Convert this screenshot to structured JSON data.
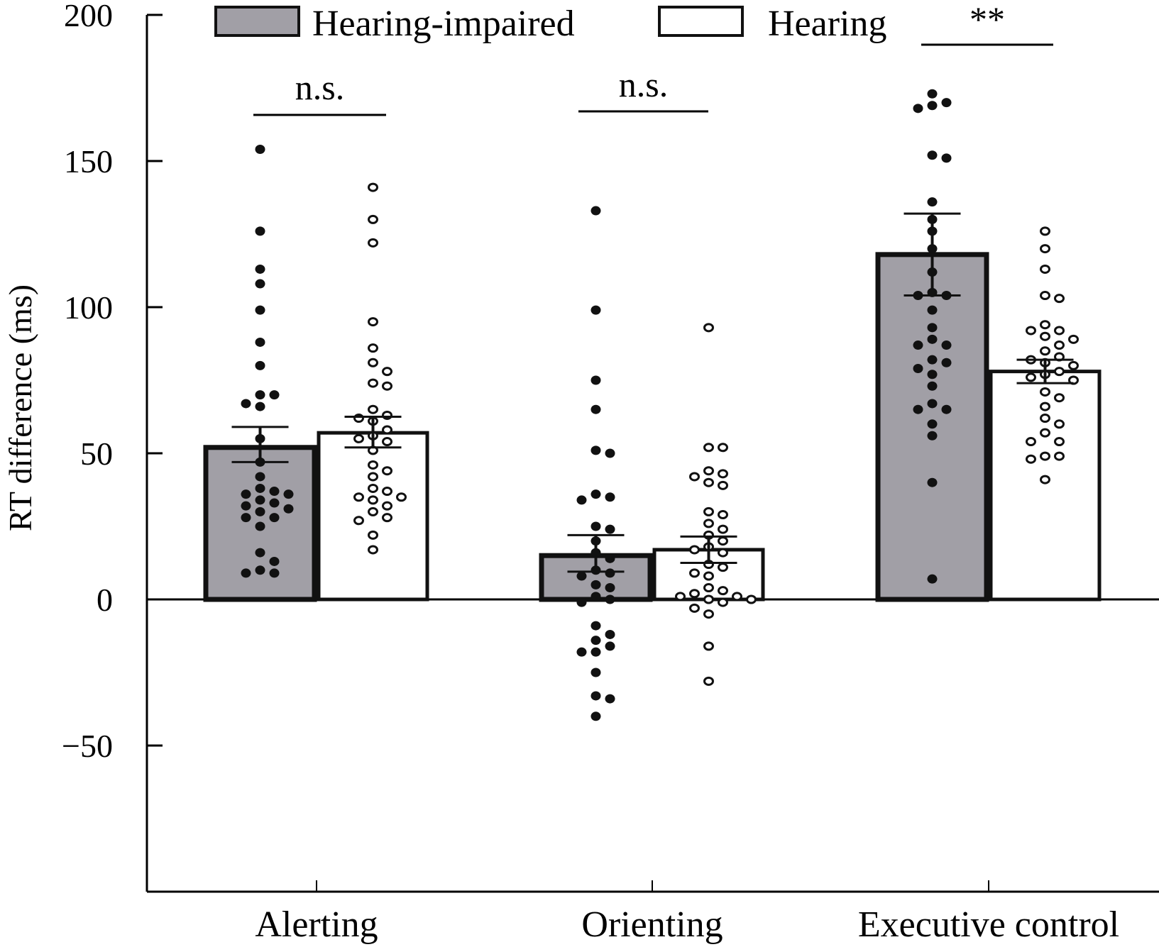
{
  "chart_data": {
    "type": "bar",
    "title": "",
    "xlabel": "",
    "ylabel": "RT difference (ms)",
    "ylim": [
      -100,
      200
    ],
    "yticks": [
      200,
      150,
      100,
      50,
      0,
      -50
    ],
    "ytick_labels": [
      "200",
      "150",
      "100",
      "50",
      "0",
      "−50"
    ],
    "categories": [
      "Alerting",
      "Orienting",
      "Executive control"
    ],
    "legend": {
      "placement": "top",
      "entries": [
        "Hearing-impaired",
        "Hearing"
      ]
    },
    "colors": {
      "Hearing-impaired": "#a19fa6",
      "Hearing": "#ffffff",
      "stroke": "#111111"
    },
    "series": [
      {
        "name": "Hearing-impaired",
        "values": [
          52,
          15,
          118
        ],
        "error_upper": [
          59,
          22,
          132
        ],
        "error_lower": [
          47,
          9.5,
          104
        ],
        "points": [
          [
            154,
            126,
            113,
            108,
            99,
            88,
            80,
            70,
            70,
            67,
            66,
            55,
            47,
            42,
            38,
            37,
            36,
            36,
            34,
            33,
            32,
            31,
            30,
            28,
            28,
            25,
            16,
            13,
            10,
            9,
            9
          ],
          [
            133,
            99,
            75,
            65,
            51,
            50,
            35,
            36,
            34,
            25,
            24,
            20,
            16,
            14,
            10,
            9,
            8,
            5,
            4,
            1,
            0,
            -1,
            -9,
            -12,
            -14,
            -16,
            -18,
            -18,
            -25,
            -33,
            -34,
            -40
          ],
          [
            173,
            170,
            169,
            168,
            151,
            152,
            136,
            130,
            126,
            120,
            112,
            105,
            104,
            104,
            99,
            93,
            89,
            87,
            87,
            81,
            82,
            79,
            77,
            73,
            67,
            65,
            65,
            60,
            56,
            40,
            7
          ]
        ]
      },
      {
        "name": "Hearing",
        "values": [
          57,
          17,
          78
        ],
        "error_upper": [
          62.5,
          21.5,
          82
        ],
        "error_lower": [
          52,
          12.5,
          74
        ],
        "points": [
          [
            141,
            130,
            122,
            95,
            86,
            81,
            78,
            74,
            73,
            65,
            63,
            61,
            62,
            58,
            56,
            55,
            54,
            51,
            46,
            44,
            42,
            38,
            37,
            35,
            35,
            34,
            32,
            30,
            28,
            27,
            22,
            17
          ],
          [
            93,
            52,
            52,
            44,
            43,
            42,
            40,
            39,
            30,
            29,
            26,
            24,
            22,
            20,
            18,
            17,
            16,
            12,
            11,
            9,
            8,
            4,
            3,
            2,
            1,
            1,
            0,
            0,
            -1,
            -3,
            -5,
            -16,
            -28
          ],
          [
            126,
            120,
            113,
            104,
            103,
            94,
            92,
            92,
            90,
            89,
            87,
            85,
            83,
            82,
            81,
            80,
            78,
            77,
            76,
            75,
            71,
            69,
            66,
            62,
            60,
            57,
            54,
            54,
            49,
            49,
            48,
            41
          ]
        ]
      }
    ],
    "annotations": [
      {
        "category": "Alerting",
        "text": "n.s."
      },
      {
        "category": "Orienting",
        "text": "n.s."
      },
      {
        "category": "Executive control",
        "text": "**"
      }
    ]
  }
}
